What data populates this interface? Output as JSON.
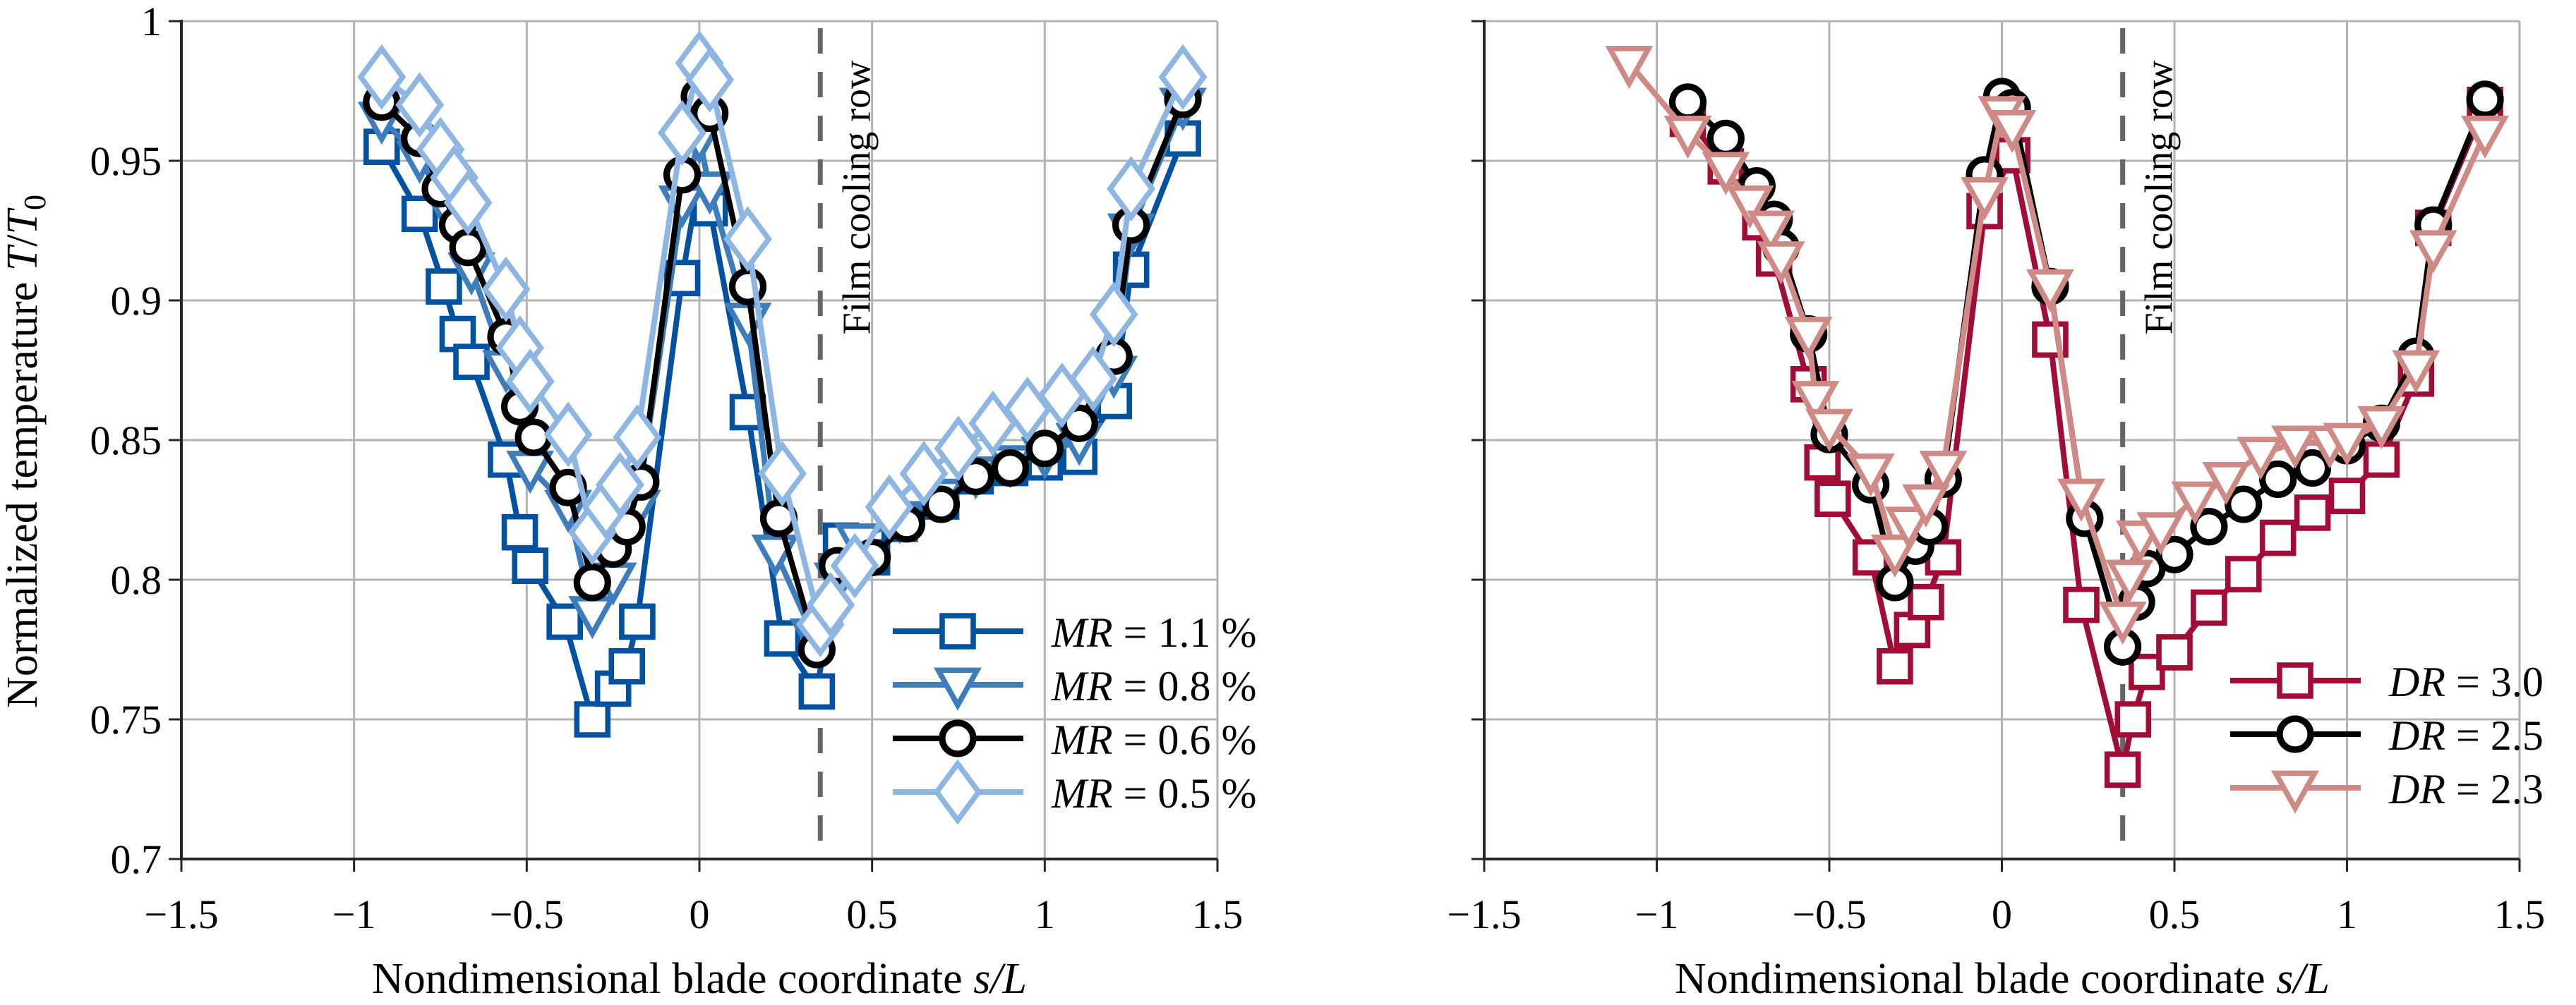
{
  "chart_data": [
    {
      "type": "line",
      "panel": "left",
      "title": "",
      "xlabel": "Nondimensional blade coordinate s/L",
      "ylabel": "Normalized temperature T/T0",
      "xlim": [
        -1.5,
        1.5
      ],
      "ylim": [
        0.7,
        1.0
      ],
      "xticks": [
        -1.5,
        -1,
        -0.5,
        0,
        0.5,
        1,
        1.5
      ],
      "xtick_labels": [
        "−1.5",
        "−1",
        "−0.5",
        "0",
        "0.5",
        "1",
        "1.5"
      ],
      "yticks": [
        0.7,
        0.75,
        0.8,
        0.85,
        0.9,
        0.95,
        1.0
      ],
      "ytick_labels": [
        "0.7",
        "0.75",
        "0.8",
        "0.85",
        "0.9",
        "0.95",
        "1"
      ],
      "grid": true,
      "legend_position": "bottom-right",
      "annotation": {
        "text": "Film cooling row",
        "x": 0.35,
        "style": "dashed-vertical-line"
      },
      "series": [
        {
          "name": "MR = 1.1 %",
          "var": "MR",
          "value_label": "= 1.1 %",
          "marker": "square",
          "color": "#0352A2",
          "x": [
            -0.92,
            -0.81,
            -0.74,
            -0.7,
            -0.66,
            -0.56,
            -0.52,
            -0.49,
            -0.39,
            -0.31,
            -0.25,
            -0.21,
            -0.18,
            -0.05,
            -0.01,
            0.03,
            0.14,
            0.24,
            0.34,
            0.41,
            0.5,
            0.58,
            0.7,
            0.8,
            0.9,
            1.0,
            1.1,
            1.2,
            1.25,
            1.4
          ],
          "y": [
            0.955,
            0.931,
            0.905,
            0.888,
            0.878,
            0.843,
            0.817,
            0.805,
            0.785,
            0.75,
            0.761,
            0.769,
            0.785,
            0.908,
            0.937,
            0.933,
            0.86,
            0.779,
            0.76,
            0.814,
            0.808,
            0.82,
            0.828,
            0.837,
            0.84,
            0.842,
            0.844,
            0.864,
            0.911,
            0.958
          ]
        },
        {
          "name": "MR = 0.8 %",
          "var": "MR",
          "value_label": "= 0.8 %",
          "marker": "triangle-down",
          "color": "#3E7DBB",
          "x": [
            -0.92,
            -0.81,
            -0.73,
            -0.66,
            -0.56,
            -0.49,
            -0.38,
            -0.31,
            -0.25,
            -0.18,
            -0.05,
            0.0,
            0.03,
            0.14,
            0.22,
            0.33,
            0.4,
            0.46,
            0.58,
            0.7,
            0.8,
            0.9,
            1.0,
            1.1,
            1.2,
            1.25,
            1.4
          ],
          "y": [
            0.965,
            0.951,
            0.933,
            0.911,
            0.876,
            0.84,
            0.826,
            0.788,
            0.8,
            0.826,
            0.935,
            0.958,
            0.94,
            0.893,
            0.81,
            0.78,
            0.8,
            0.814,
            0.822,
            0.83,
            0.838,
            0.842,
            0.845,
            0.85,
            0.874,
            0.925,
            0.97
          ]
        },
        {
          "name": "MR = 0.6 %",
          "var": "MR",
          "value_label": "= 0.6 %",
          "marker": "circle",
          "color": "#000000",
          "x": [
            -0.92,
            -0.81,
            -0.75,
            -0.7,
            -0.67,
            -0.56,
            -0.52,
            -0.48,
            -0.38,
            -0.31,
            -0.25,
            -0.21,
            -0.17,
            -0.05,
            0.0,
            0.03,
            0.14,
            0.23,
            0.34,
            0.4,
            0.5,
            0.6,
            0.7,
            0.8,
            0.9,
            1.0,
            1.1,
            1.2,
            1.25,
            1.4
          ],
          "y": [
            0.971,
            0.958,
            0.94,
            0.927,
            0.919,
            0.887,
            0.862,
            0.851,
            0.833,
            0.799,
            0.811,
            0.819,
            0.835,
            0.945,
            0.973,
            0.967,
            0.905,
            0.822,
            0.775,
            0.805,
            0.808,
            0.82,
            0.827,
            0.837,
            0.84,
            0.847,
            0.856,
            0.88,
            0.927,
            0.972
          ]
        },
        {
          "name": "MR = 0.5 %",
          "var": "MR",
          "value_label": "= 0.5 %",
          "marker": "diamond",
          "color": "#8DB6E3",
          "x": [
            -0.92,
            -0.81,
            -0.75,
            -0.71,
            -0.67,
            -0.56,
            -0.52,
            -0.49,
            -0.38,
            -0.31,
            -0.27,
            -0.23,
            -0.18,
            -0.05,
            0.0,
            0.03,
            0.14,
            0.24,
            0.35,
            0.38,
            0.45,
            0.55,
            0.65,
            0.75,
            0.85,
            0.95,
            1.05,
            1.14,
            1.2,
            1.25,
            1.4
          ],
          "y": [
            0.98,
            0.97,
            0.954,
            0.944,
            0.935,
            0.904,
            0.883,
            0.871,
            0.852,
            0.817,
            0.826,
            0.834,
            0.851,
            0.96,
            0.985,
            0.979,
            0.922,
            0.838,
            0.784,
            0.791,
            0.805,
            0.826,
            0.838,
            0.847,
            0.856,
            0.861,
            0.866,
            0.872,
            0.895,
            0.94,
            0.98
          ]
        }
      ]
    },
    {
      "type": "line",
      "panel": "right",
      "title": "",
      "xlabel": "Nondimensional blade coordinate s/L",
      "ylabel": "",
      "xlim": [
        -1.5,
        1.5
      ],
      "ylim": [
        0.7,
        1.0
      ],
      "xticks": [
        -1.5,
        -1,
        -0.5,
        0,
        0.5,
        1,
        1.5
      ],
      "xtick_labels": [
        "−1.5",
        "−1",
        "−0.5",
        "0",
        "0.5",
        "1",
        "1.5"
      ],
      "yticks": [
        0.7,
        0.75,
        0.8,
        0.85,
        0.9,
        0.95,
        1.0
      ],
      "ytick_labels": [],
      "grid": true,
      "legend_position": "bottom-right",
      "annotation": {
        "text": "Film cooling row",
        "x": 0.35,
        "style": "dashed-vertical-line"
      },
      "series": [
        {
          "name": "DR = 3.0",
          "var": "DR",
          "value_label": "= 3.0",
          "marker": "square",
          "color": "#A10D36",
          "x": [
            -0.91,
            -0.8,
            -0.7,
            -0.66,
            -0.56,
            -0.52,
            -0.49,
            -0.38,
            -0.31,
            -0.26,
            -0.22,
            -0.17,
            -0.05,
            0.03,
            0.14,
            0.23,
            0.35,
            0.38,
            0.42,
            0.5,
            0.6,
            0.7,
            0.8,
            0.9,
            1.0,
            1.1,
            1.2,
            1.25,
            1.4
          ],
          "y": [
            0.965,
            0.948,
            0.928,
            0.915,
            0.87,
            0.842,
            0.829,
            0.808,
            0.769,
            0.782,
            0.792,
            0.808,
            0.932,
            0.952,
            0.886,
            0.791,
            0.732,
            0.75,
            0.767,
            0.774,
            0.79,
            0.802,
            0.815,
            0.824,
            0.83,
            0.843,
            0.872,
            0.926,
            0.97
          ]
        },
        {
          "name": "DR = 2.5",
          "var": "DR",
          "value_label": "= 2.5",
          "marker": "circle",
          "color": "#000000",
          "x": [
            -0.91,
            -0.8,
            -0.71,
            -0.66,
            -0.64,
            -0.56,
            -0.5,
            -0.38,
            -0.31,
            -0.25,
            -0.21,
            -0.17,
            -0.05,
            0.0,
            0.03,
            0.14,
            0.24,
            0.35,
            0.39,
            0.42,
            0.5,
            0.6,
            0.7,
            0.8,
            0.9,
            1.0,
            1.1,
            1.2,
            1.25,
            1.4
          ],
          "y": [
            0.971,
            0.958,
            0.941,
            0.929,
            0.919,
            0.888,
            0.852,
            0.834,
            0.799,
            0.812,
            0.819,
            0.836,
            0.945,
            0.973,
            0.969,
            0.905,
            0.822,
            0.776,
            0.792,
            0.804,
            0.809,
            0.819,
            0.827,
            0.836,
            0.84,
            0.848,
            0.856,
            0.88,
            0.927,
            0.972
          ]
        },
        {
          "name": "DR = 2.3",
          "var": "DR",
          "value_label": "= 2.3",
          "marker": "triangle-down",
          "color": "#CF8A86",
          "x": [
            -1.08,
            -0.91,
            -0.8,
            -0.73,
            -0.67,
            -0.64,
            -0.56,
            -0.54,
            -0.5,
            -0.38,
            -0.31,
            -0.27,
            -0.22,
            -0.17,
            -0.05,
            0.0,
            0.03,
            0.14,
            0.23,
            0.35,
            0.37,
            0.4,
            0.46,
            0.56,
            0.65,
            0.75,
            0.85,
            0.95,
            1.0,
            1.1,
            1.2,
            1.25,
            1.4
          ],
          "y": [
            0.985,
            0.96,
            0.947,
            0.935,
            0.926,
            0.915,
            0.888,
            0.865,
            0.855,
            0.839,
            0.81,
            0.82,
            0.828,
            0.84,
            0.938,
            0.967,
            0.962,
            0.905,
            0.83,
            0.786,
            0.801,
            0.815,
            0.818,
            0.829,
            0.836,
            0.845,
            0.849,
            0.849,
            0.85,
            0.856,
            0.876,
            0.919,
            0.96
          ]
        }
      ]
    }
  ],
  "labels": {
    "ylabel_text": "Normalized temperature ",
    "ylabel_var": "T",
    "ylabel_slash": "/",
    "ylabel_var2": "T",
    "ylabel_sub": "0",
    "xlabel_text": "Nondimensional blade coordinate ",
    "xlabel_var": "s/L",
    "annotation": "Film cooling row"
  }
}
